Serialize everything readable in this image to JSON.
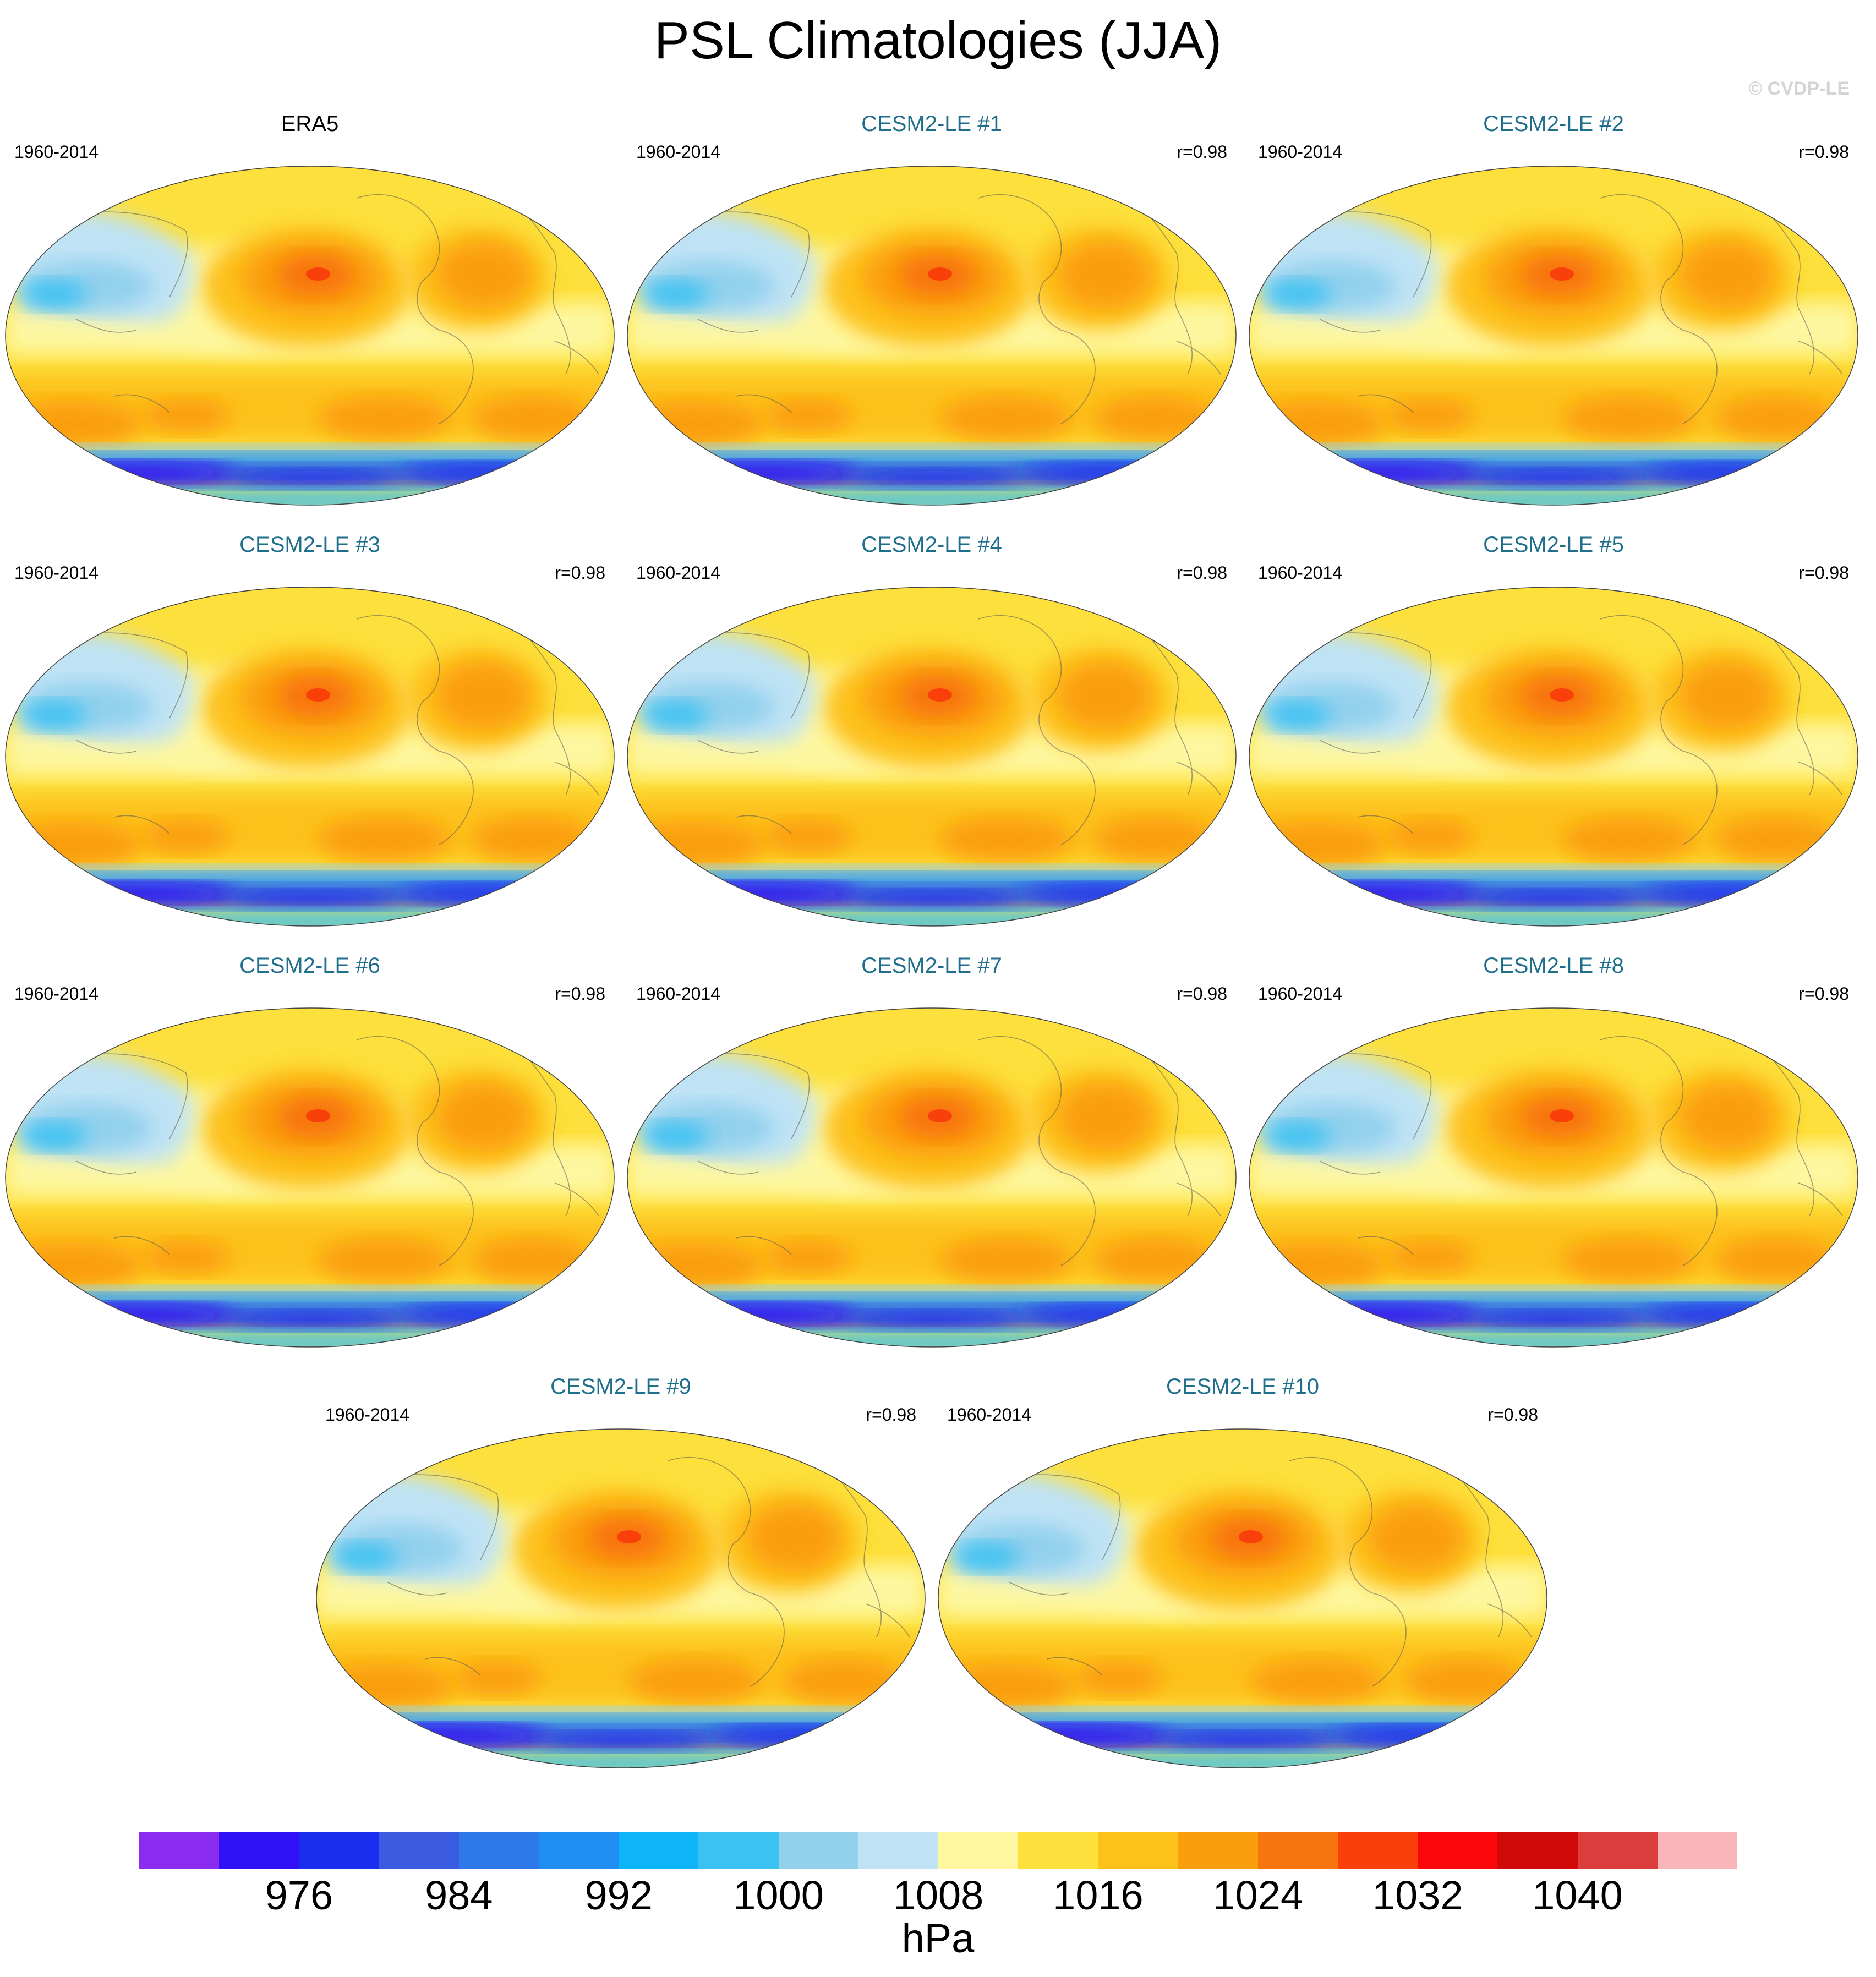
{
  "title": "PSL Climatologies (JJA)",
  "watermark": "© CVDP-LE",
  "panels": [
    {
      "name": "ERA5",
      "period": "1960-2014",
      "corr": "",
      "kind": "obs"
    },
    {
      "name": "CESM2-LE #1",
      "period": "1960-2014",
      "corr": "r=0.98",
      "kind": "model"
    },
    {
      "name": "CESM2-LE #2",
      "period": "1960-2014",
      "corr": "r=0.98",
      "kind": "model"
    },
    {
      "name": "CESM2-LE #3",
      "period": "1960-2014",
      "corr": "r=0.98",
      "kind": "model"
    },
    {
      "name": "CESM2-LE #4",
      "period": "1960-2014",
      "corr": "r=0.98",
      "kind": "model"
    },
    {
      "name": "CESM2-LE #5",
      "period": "1960-2014",
      "corr": "r=0.98",
      "kind": "model"
    },
    {
      "name": "CESM2-LE #6",
      "period": "1960-2014",
      "corr": "r=0.98",
      "kind": "model"
    },
    {
      "name": "CESM2-LE #7",
      "period": "1960-2014",
      "corr": "r=0.98",
      "kind": "model"
    },
    {
      "name": "CESM2-LE #8",
      "period": "1960-2014",
      "corr": "r=0.98",
      "kind": "model"
    },
    {
      "name": "CESM2-LE #9",
      "period": "1960-2014",
      "corr": "r=0.98",
      "kind": "model"
    },
    {
      "name": "CESM2-LE #10",
      "period": "1960-2014",
      "corr": "r=0.98",
      "kind": "model"
    }
  ],
  "colorbar": {
    "unit": "hPa",
    "colors": [
      "#8b2cf0",
      "#3010f5",
      "#1a2ef0",
      "#3b5be0",
      "#2f78ea",
      "#1f8ff5",
      "#0db4f7",
      "#3cc2f2",
      "#92d0ed",
      "#bfe3f5",
      "#fef7a0",
      "#fde03c",
      "#fdc11a",
      "#fb9e0e",
      "#f8750d",
      "#f93f0a",
      "#f9070a",
      "#d10909",
      "#db3c3c",
      "#f9b5b7"
    ],
    "tick_values": [
      976,
      984,
      992,
      1000,
      1008,
      1016,
      1024,
      1032,
      1040
    ],
    "tick_labels": [
      "976",
      "984",
      "992",
      "1000",
      "1008",
      "1016",
      "1024",
      "1032",
      "1040"
    ]
  }
}
